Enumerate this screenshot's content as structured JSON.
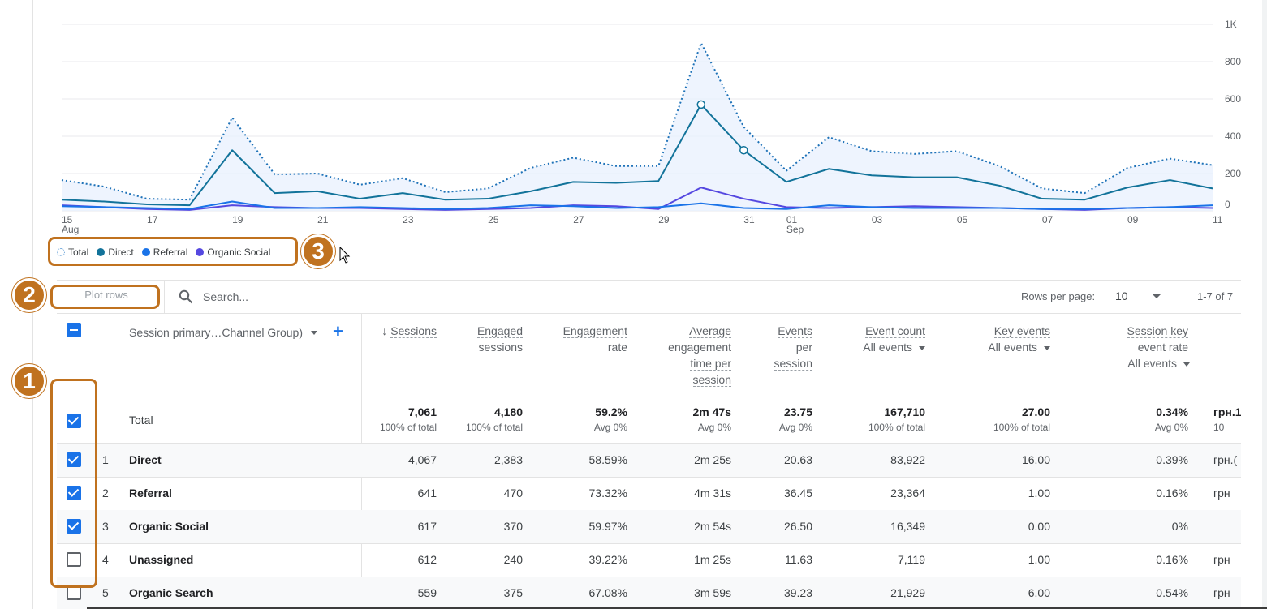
{
  "chart_data": {
    "type": "line",
    "x": [
      "15 Aug",
      "16",
      "17",
      "18",
      "19",
      "20",
      "21",
      "22",
      "23",
      "24",
      "25",
      "26",
      "27",
      "28",
      "29",
      "30",
      "31",
      "01 Sep",
      "02",
      "03",
      "04",
      "05",
      "06",
      "07",
      "08",
      "09",
      "10",
      "11"
    ],
    "x_tick_labels": [
      "15",
      "17",
      "19",
      "21",
      "23",
      "25",
      "27",
      "29",
      "31",
      "01",
      "03",
      "05",
      "07",
      "09",
      "11"
    ],
    "x_month_labels": [
      {
        "at": "15",
        "month": "Aug"
      },
      {
        "at": "01",
        "month": "Sep"
      }
    ],
    "y_tick_labels": [
      "0",
      "200",
      "400",
      "600",
      "800",
      "1K"
    ],
    "ylim": [
      0,
      1000
    ],
    "series": [
      {
        "name": "Total",
        "color": "#1e72b8",
        "style": "dotted",
        "values": [
          165,
          130,
          65,
          60,
          500,
          195,
          200,
          140,
          175,
          100,
          120,
          230,
          285,
          240,
          240,
          900,
          450,
          215,
          395,
          320,
          305,
          320,
          240,
          120,
          95,
          230,
          280,
          245
        ]
      },
      {
        "name": "Direct",
        "color": "#12739a",
        "style": "solid",
        "values": [
          60,
          50,
          35,
          30,
          325,
          95,
          105,
          65,
          95,
          60,
          65,
          105,
          155,
          150,
          160,
          570,
          325,
          155,
          225,
          190,
          180,
          180,
          135,
          65,
          60,
          125,
          165,
          120
        ]
      },
      {
        "name": "Referral",
        "color": "#1a73e8",
        "style": "solid",
        "values": [
          25,
          20,
          15,
          10,
          50,
          15,
          15,
          20,
          15,
          10,
          15,
          30,
          25,
          15,
          20,
          40,
          15,
          10,
          30,
          20,
          15,
          15,
          15,
          10,
          10,
          15,
          20,
          30
        ]
      },
      {
        "name": "Organic Social",
        "color": "#5548e0",
        "style": "solid",
        "values": [
          30,
          20,
          10,
          5,
          30,
          20,
          15,
          15,
          10,
          5,
          10,
          15,
          30,
          25,
          10,
          125,
          65,
          20,
          15,
          20,
          25,
          20,
          15,
          10,
          5,
          15,
          20,
          15
        ]
      }
    ],
    "highlighted_points": [
      {
        "series": "Direct",
        "x": "30"
      },
      {
        "series": "Direct",
        "x": "31"
      }
    ]
  },
  "legend": {
    "items": [
      {
        "label": "Total",
        "color": "#5b9bd5",
        "dotted": true
      },
      {
        "label": "Direct",
        "color": "#12739a"
      },
      {
        "label": "Referral",
        "color": "#1a73e8"
      },
      {
        "label": "Organic Social",
        "color": "#5548e0"
      }
    ]
  },
  "annotations": {
    "badge1": "1",
    "badge2": "2",
    "badge3": "3"
  },
  "toolbar": {
    "plot_rows_label": "Plot rows",
    "search_placeholder": "Search...",
    "rows_per_page_label": "Rows per page:",
    "rows_per_page_value": "10",
    "page_range": "1-7 of 7"
  },
  "table": {
    "dimension_header": "Session primary…Channel Group)",
    "add_symbol": "+",
    "columns": [
      {
        "lines": [
          "Sessions"
        ],
        "sorted": true
      },
      {
        "lines": [
          "Engaged",
          "sessions"
        ]
      },
      {
        "lines": [
          "Engagement",
          "rate"
        ]
      },
      {
        "lines": [
          "Average",
          "engagement",
          "time per",
          "session"
        ]
      },
      {
        "lines": [
          "Events",
          "per",
          "session"
        ]
      },
      {
        "lines": [
          "Event count"
        ],
        "sub": "All events"
      },
      {
        "lines": [
          "Key events"
        ],
        "sub": "All events"
      },
      {
        "lines": [
          "Session key",
          "event rate"
        ],
        "sub": "All events"
      },
      {
        "lines": []
      }
    ],
    "total": {
      "label": "Total",
      "values": [
        "7,061",
        "4,180",
        "59.2%",
        "2m 47s",
        "23.75",
        "167,710",
        "27.00",
        "0.34%",
        "грн.1"
      ],
      "subs": [
        "100% of total",
        "100% of total",
        "Avg 0%",
        "Avg 0%",
        "Avg 0%",
        "100% of total",
        "100% of total",
        "Avg 0%",
        "10"
      ]
    },
    "rows": [
      {
        "num": "1",
        "name": "Direct",
        "checked": true,
        "values": [
          "4,067",
          "2,383",
          "58.59%",
          "2m 25s",
          "20.63",
          "83,922",
          "16.00",
          "0.39%",
          "грн.("
        ]
      },
      {
        "num": "2",
        "name": "Referral",
        "checked": true,
        "values": [
          "641",
          "470",
          "73.32%",
          "4m 31s",
          "36.45",
          "23,364",
          "1.00",
          "0.16%",
          "грн"
        ]
      },
      {
        "num": "3",
        "name": "Organic Social",
        "checked": true,
        "values": [
          "617",
          "370",
          "59.97%",
          "2m 54s",
          "26.50",
          "16,349",
          "0.00",
          "0%",
          ""
        ]
      },
      {
        "num": "4",
        "name": "Unassigned",
        "checked": false,
        "values": [
          "612",
          "240",
          "39.22%",
          "1m 25s",
          "11.63",
          "7,119",
          "1.00",
          "0.16%",
          "грн"
        ]
      },
      {
        "num": "5",
        "name": "Organic Search",
        "checked": false,
        "values": [
          "559",
          "375",
          "67.08%",
          "3m 59s",
          "39.23",
          "21,929",
          "6.00",
          "0.54%",
          "грн"
        ]
      }
    ]
  }
}
